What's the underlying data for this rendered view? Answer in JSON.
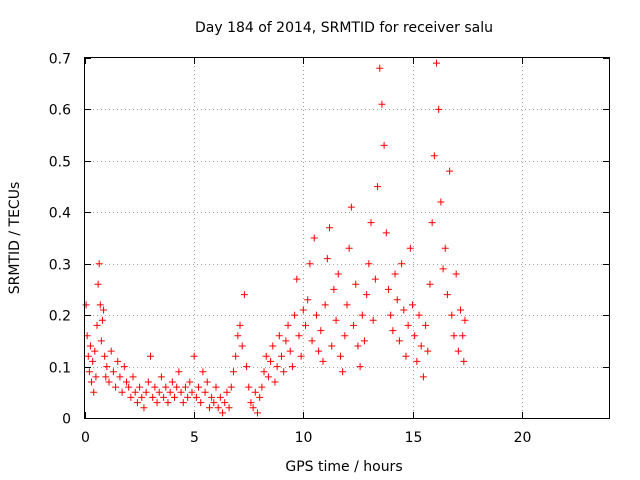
{
  "chart_data": {
    "type": "scatter",
    "title": "Day 184 of 2014, SRMTID for receiver salu",
    "xlabel": "GPS time / hours",
    "ylabel": "SRMTID / TECUs",
    "xlim": [
      0,
      24
    ],
    "ylim": [
      0,
      0.7
    ],
    "x_ticks": [
      0,
      5,
      10,
      15,
      20
    ],
    "x_tick_labels": [
      "0",
      "5",
      "10",
      "15",
      "20"
    ],
    "y_ticks": [
      0,
      0.1,
      0.2,
      0.3,
      0.4,
      0.5,
      0.6,
      0.7
    ],
    "y_tick_labels": [
      "0",
      "0.1",
      "0.2",
      "0.3",
      "0.4",
      "0.5",
      "0.6",
      "0.7"
    ],
    "grid": true,
    "marker": "plus",
    "color": "#ff0000",
    "series": [
      {
        "name": "SRMTID",
        "points": [
          [
            0.05,
            0.22
          ],
          [
            0.1,
            0.16
          ],
          [
            0.15,
            0.12
          ],
          [
            0.2,
            0.09
          ],
          [
            0.25,
            0.14
          ],
          [
            0.3,
            0.07
          ],
          [
            0.35,
            0.11
          ],
          [
            0.4,
            0.05
          ],
          [
            0.45,
            0.13
          ],
          [
            0.5,
            0.08
          ],
          [
            0.55,
            0.18
          ],
          [
            0.6,
            0.26
          ],
          [
            0.65,
            0.3
          ],
          [
            0.7,
            0.22
          ],
          [
            0.75,
            0.15
          ],
          [
            0.8,
            0.19
          ],
          [
            0.85,
            0.21
          ],
          [
            0.9,
            0.12
          ],
          [
            0.95,
            0.08
          ],
          [
            1.0,
            0.1
          ],
          [
            1.1,
            0.07
          ],
          [
            1.2,
            0.13
          ],
          [
            1.3,
            0.09
          ],
          [
            1.4,
            0.06
          ],
          [
            1.5,
            0.11
          ],
          [
            1.6,
            0.08
          ],
          [
            1.7,
            0.05
          ],
          [
            1.8,
            0.1
          ],
          [
            1.9,
            0.07
          ],
          [
            2.0,
            0.06
          ],
          [
            2.1,
            0.04
          ],
          [
            2.2,
            0.08
          ],
          [
            2.3,
            0.05
          ],
          [
            2.4,
            0.03
          ],
          [
            2.5,
            0.06
          ],
          [
            2.6,
            0.04
          ],
          [
            2.7,
            0.02
          ],
          [
            2.8,
            0.05
          ],
          [
            2.9,
            0.07
          ],
          [
            3.0,
            0.12
          ],
          [
            3.1,
            0.04
          ],
          [
            3.2,
            0.06
          ],
          [
            3.3,
            0.03
          ],
          [
            3.4,
            0.05
          ],
          [
            3.5,
            0.08
          ],
          [
            3.6,
            0.04
          ],
          [
            3.7,
            0.06
          ],
          [
            3.8,
            0.03
          ],
          [
            3.9,
            0.05
          ],
          [
            4.0,
            0.07
          ],
          [
            4.1,
            0.04
          ],
          [
            4.2,
            0.06
          ],
          [
            4.3,
            0.09
          ],
          [
            4.4,
            0.05
          ],
          [
            4.5,
            0.03
          ],
          [
            4.6,
            0.06
          ],
          [
            4.7,
            0.04
          ],
          [
            4.8,
            0.07
          ],
          [
            4.9,
            0.05
          ],
          [
            5.0,
            0.12
          ],
          [
            5.1,
            0.04
          ],
          [
            5.2,
            0.06
          ],
          [
            5.3,
            0.03
          ],
          [
            5.4,
            0.09
          ],
          [
            5.5,
            0.05
          ],
          [
            5.6,
            0.07
          ],
          [
            5.7,
            0.02
          ],
          [
            5.8,
            0.04
          ],
          [
            5.9,
            0.03
          ],
          [
            6.0,
            0.06
          ],
          [
            6.1,
            0.02
          ],
          [
            6.2,
            0.04
          ],
          [
            6.3,
            0.01
          ],
          [
            6.4,
            0.03
          ],
          [
            6.5,
            0.05
          ],
          [
            6.6,
            0.02
          ],
          [
            6.7,
            0.06
          ],
          [
            6.8,
            0.09
          ],
          [
            6.9,
            0.12
          ],
          [
            7.0,
            0.16
          ],
          [
            7.1,
            0.18
          ],
          [
            7.2,
            0.14
          ],
          [
            7.3,
            0.24
          ],
          [
            7.4,
            0.1
          ],
          [
            7.5,
            0.06
          ],
          [
            7.6,
            0.03
          ],
          [
            7.7,
            0.02
          ],
          [
            7.8,
            0.05
          ],
          [
            7.9,
            0.01
          ],
          [
            8.0,
            0.04
          ],
          [
            8.1,
            0.06
          ],
          [
            8.2,
            0.09
          ],
          [
            8.3,
            0.12
          ],
          [
            8.4,
            0.08
          ],
          [
            8.5,
            0.11
          ],
          [
            8.6,
            0.14
          ],
          [
            8.7,
            0.07
          ],
          [
            8.8,
            0.1
          ],
          [
            8.9,
            0.16
          ],
          [
            9.0,
            0.12
          ],
          [
            9.1,
            0.09
          ],
          [
            9.2,
            0.15
          ],
          [
            9.3,
            0.18
          ],
          [
            9.4,
            0.13
          ],
          [
            9.5,
            0.1
          ],
          [
            9.6,
            0.2
          ],
          [
            9.7,
            0.27
          ],
          [
            9.8,
            0.16
          ],
          [
            9.9,
            0.12
          ],
          [
            10.0,
            0.21
          ],
          [
            10.1,
            0.18
          ],
          [
            10.2,
            0.23
          ],
          [
            10.3,
            0.3
          ],
          [
            10.4,
            0.15
          ],
          [
            10.5,
            0.35
          ],
          [
            10.6,
            0.2
          ],
          [
            10.7,
            0.13
          ],
          [
            10.8,
            0.17
          ],
          [
            10.9,
            0.11
          ],
          [
            11.0,
            0.22
          ],
          [
            11.1,
            0.31
          ],
          [
            11.2,
            0.37
          ],
          [
            11.3,
            0.14
          ],
          [
            11.4,
            0.25
          ],
          [
            11.5,
            0.19
          ],
          [
            11.6,
            0.28
          ],
          [
            11.7,
            0.12
          ],
          [
            11.8,
            0.09
          ],
          [
            11.9,
            0.16
          ],
          [
            12.0,
            0.22
          ],
          [
            12.1,
            0.33
          ],
          [
            12.2,
            0.41
          ],
          [
            12.3,
            0.18
          ],
          [
            12.4,
            0.26
          ],
          [
            12.5,
            0.14
          ],
          [
            12.6,
            0.1
          ],
          [
            12.7,
            0.2
          ],
          [
            12.8,
            0.15
          ],
          [
            12.9,
            0.24
          ],
          [
            13.0,
            0.3
          ],
          [
            13.1,
            0.38
          ],
          [
            13.2,
            0.19
          ],
          [
            13.3,
            0.27
          ],
          [
            13.4,
            0.45
          ],
          [
            13.5,
            0.68
          ],
          [
            13.6,
            0.61
          ],
          [
            13.7,
            0.53
          ],
          [
            13.8,
            0.36
          ],
          [
            13.9,
            0.25
          ],
          [
            14.0,
            0.2
          ],
          [
            14.1,
            0.17
          ],
          [
            14.2,
            0.28
          ],
          [
            14.3,
            0.23
          ],
          [
            14.4,
            0.15
          ],
          [
            14.5,
            0.3
          ],
          [
            14.6,
            0.21
          ],
          [
            14.7,
            0.12
          ],
          [
            14.8,
            0.18
          ],
          [
            14.9,
            0.33
          ],
          [
            15.0,
            0.22
          ],
          [
            15.1,
            0.16
          ],
          [
            15.2,
            0.11
          ],
          [
            15.3,
            0.2
          ],
          [
            15.4,
            0.14
          ],
          [
            15.5,
            0.08
          ],
          [
            15.6,
            0.18
          ],
          [
            15.7,
            0.13
          ],
          [
            15.8,
            0.26
          ],
          [
            15.9,
            0.38
          ],
          [
            16.0,
            0.51
          ],
          [
            16.1,
            0.69
          ],
          [
            16.2,
            0.6
          ],
          [
            16.3,
            0.42
          ],
          [
            16.4,
            0.29
          ],
          [
            16.5,
            0.33
          ],
          [
            16.6,
            0.24
          ],
          [
            16.7,
            0.48
          ],
          [
            16.8,
            0.2
          ],
          [
            16.9,
            0.16
          ],
          [
            17.0,
            0.28
          ],
          [
            17.1,
            0.13
          ],
          [
            17.2,
            0.21
          ],
          [
            17.3,
            0.16
          ],
          [
            17.35,
            0.11
          ],
          [
            17.4,
            0.19
          ]
        ]
      }
    ]
  }
}
